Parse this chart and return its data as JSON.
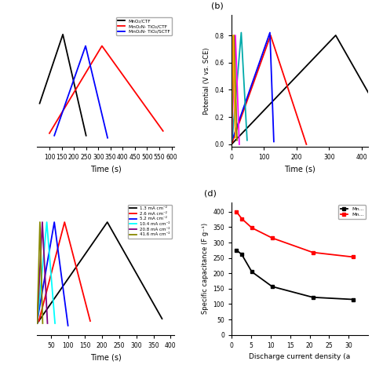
{
  "panel_a": {
    "xlabel": "Time (s)",
    "xlim": [
      50,
      610
    ],
    "xticks": [
      100,
      150,
      200,
      250,
      300,
      350,
      400,
      450,
      500,
      550,
      600
    ],
    "ylim": [
      -0.1,
      1.05
    ],
    "series": [
      {
        "color": "black",
        "label": "MnO₂/CTF",
        "x": [
          60,
          155,
          250
        ],
        "y": [
          0.28,
          0.88,
          0.0
        ]
      },
      {
        "color": "red",
        "label": "MnO₂N- TiO₂/CTF",
        "x": [
          100,
          315,
          565
        ],
        "y": [
          0.02,
          0.78,
          0.04
        ]
      },
      {
        "color": "blue",
        "label": "MnO₂N- TiO₂/SCTF",
        "x": [
          120,
          248,
          338
        ],
        "y": [
          0.0,
          0.78,
          -0.02
        ]
      }
    ]
  },
  "panel_b": {
    "xlabel": "Time (s)",
    "ylabel": "Potential (V vs. SCE)",
    "xlim": [
      0,
      420
    ],
    "xticks": [
      0,
      100,
      200,
      300,
      400
    ],
    "ylim": [
      -0.02,
      0.95
    ],
    "yticks": [
      0.0,
      0.2,
      0.4,
      0.6,
      0.8
    ],
    "series": [
      {
        "color": "black",
        "x": [
          0,
          320,
          420
        ],
        "y": [
          0.0,
          0.8,
          0.38
        ]
      },
      {
        "color": "red",
        "x": [
          0,
          120,
          230
        ],
        "y": [
          0.0,
          0.8,
          0.0
        ]
      },
      {
        "color": "blue",
        "x": [
          5,
          118,
          130
        ],
        "y": [
          0.05,
          0.82,
          0.02
        ]
      },
      {
        "color": "#00aaaa",
        "x": [
          2,
          30,
          48
        ],
        "y": [
          0.03,
          0.82,
          0.03
        ]
      },
      {
        "color": "magenta",
        "x": [
          0,
          12,
          24
        ],
        "y": [
          0.0,
          0.8,
          0.0
        ]
      },
      {
        "color": "#888800",
        "x": [
          0,
          8,
          17
        ],
        "y": [
          0.03,
          0.8,
          0.03
        ]
      },
      {
        "color": "orange",
        "x": [
          0,
          5,
          12
        ],
        "y": [
          0.05,
          0.8,
          0.05
        ]
      }
    ]
  },
  "panel_c": {
    "xlabel": "Time (s)",
    "xlim": [
      10,
      410
    ],
    "xticks": [
      50,
      100,
      150,
      200,
      250,
      300,
      350,
      400
    ],
    "ylim": [
      -0.1,
      1.05
    ],
    "series": [
      {
        "color": "black",
        "label": "1.3 mA cm⁻²",
        "x": [
          10,
          215,
          375
        ],
        "y": [
          0.0,
          0.88,
          0.04
        ]
      },
      {
        "color": "red",
        "label": "2.6 mA cm⁻²",
        "x": [
          15,
          90,
          165
        ],
        "y": [
          0.02,
          0.88,
          0.02
        ]
      },
      {
        "color": "blue",
        "label": "5.2 mA cm⁻²",
        "x": [
          10,
          60,
          100
        ],
        "y": [
          0.02,
          0.88,
          -0.02
        ]
      },
      {
        "color": "cyan",
        "label": "10.4 mA cm⁻²",
        "x": [
          10,
          38,
          62
        ],
        "y": [
          0.0,
          0.88,
          0.0
        ]
      },
      {
        "color": "purple",
        "label": "20.8 mA cm⁻²",
        "x": [
          10,
          25,
          40
        ],
        "y": [
          0.0,
          0.88,
          0.0
        ]
      },
      {
        "color": "#888800",
        "label": "41.6 mA cm⁻²",
        "x": [
          10,
          18,
          26
        ],
        "y": [
          0.0,
          0.88,
          0.0
        ]
      }
    ]
  },
  "panel_d": {
    "xlabel": "Discharge current density (a",
    "ylabel": "Specific capacitance (F g⁻¹)",
    "xlim": [
      0,
      35
    ],
    "ylim": [
      0,
      430
    ],
    "yticks": [
      0,
      50,
      100,
      150,
      200,
      250,
      300,
      350,
      400
    ],
    "xticks": [
      0,
      5,
      10,
      15,
      20,
      25,
      30
    ],
    "series": [
      {
        "color": "black",
        "label": "Mn…",
        "x": [
          1.3,
          2.6,
          5.2,
          10.4,
          20.8,
          31.2
        ],
        "y": [
          275,
          262,
          205,
          157,
          122,
          115
        ]
      },
      {
        "color": "red",
        "label": "Mn…",
        "x": [
          1.3,
          2.6,
          5.2,
          10.4,
          20.8,
          31.2
        ],
        "y": [
          400,
          378,
          348,
          315,
          268,
          253
        ]
      }
    ]
  }
}
